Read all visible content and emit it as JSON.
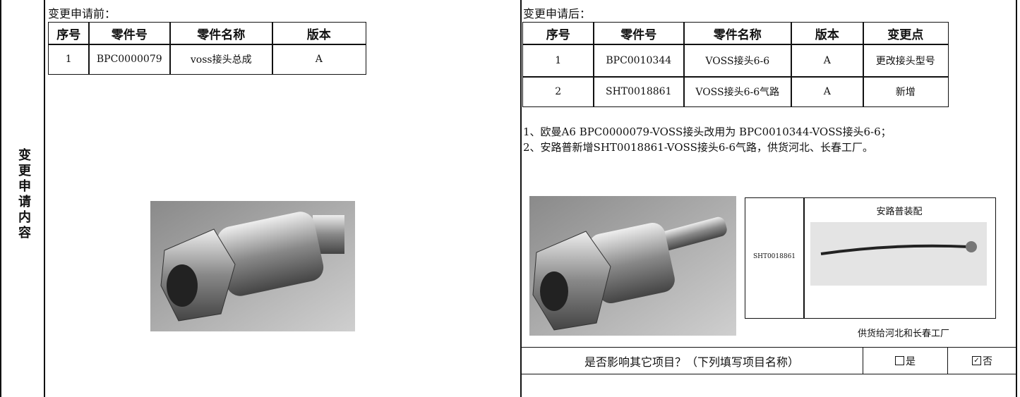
{
  "left_label": "变更申请内容",
  "before": {
    "title": "变更申请前：",
    "table": {
      "header": [
        "序号",
        "零件号",
        "零件名称",
        "版本"
      ],
      "rows": [
        [
          "1",
          "BPC0000079",
          "voss接头总成",
          "A"
        ]
      ]
    }
  },
  "after": {
    "title": "变更申请后：",
    "table": {
      "header": [
        "序号",
        "零件号",
        "零件名称",
        "版本",
        "变更点"
      ],
      "rows": [
        [
          "1",
          "BPC0010344",
          "VOSS接头6-6",
          "A",
          "更改接头型号"
        ],
        [
          "2",
          "SHT0018861",
          "VOSS接头6-6气路",
          "A",
          "新增"
        ]
      ]
    },
    "notes": [
      "1、欧曼A6 BPC0000079-VOSS接头改用为 BPC0010344-VOSS接头6-6；",
      "2、安路普新增SHT0018861-VOSS接头6-6气路，供货河北、长春工厂。"
    ],
    "diagram": {
      "title": "安路普装配",
      "part": "SHT0018861",
      "caption": "供货给河北和长春工厂"
    }
  },
  "impact": {
    "question": "是否影响其它项目？（下列填写项目名称）",
    "yes": "是",
    "no": "否"
  }
}
